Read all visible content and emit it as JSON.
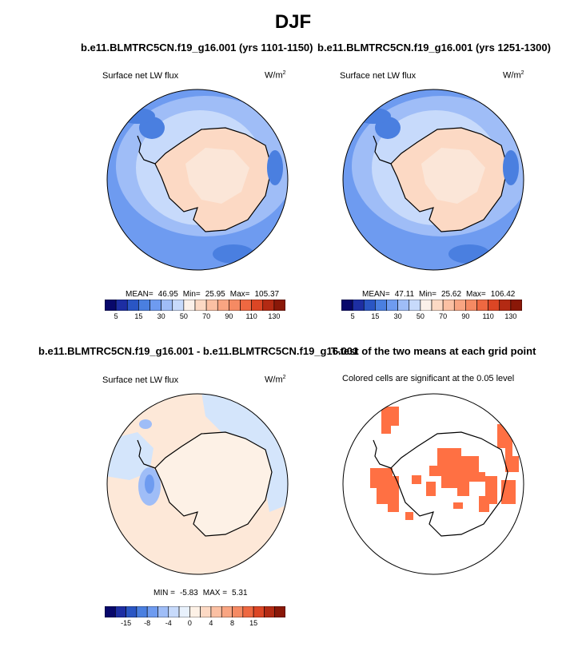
{
  "title": "DJF",
  "panels": [
    {
      "title": "b.e11.BLMTRC5CN.f19_g16.001 (yrs 1101-1150)",
      "variable": "Surface net LW flux",
      "units": "W/m",
      "units_exp": "2",
      "stats": {
        "mean_label": "MEAN=",
        "mean": "46.95",
        "min_label": "Min=",
        "min": "25.95",
        "max_label": "Max=",
        "max": "105.37"
      },
      "colorbar": {
        "colors": [
          "#08086b",
          "#1d2ea3",
          "#2a56c4",
          "#4a7fe0",
          "#6e9bf0",
          "#9fbdf7",
          "#c7dafb",
          "#fbf1ea",
          "#fcd9c4",
          "#fbc0a3",
          "#f9a582",
          "#f58a63",
          "#ee6841",
          "#dc4625",
          "#b32a13",
          "#8a1808"
        ],
        "tick_labels": [
          "5",
          "15",
          "30",
          "50",
          "70",
          "90",
          "110",
          "130"
        ]
      }
    },
    {
      "title": "b.e11.BLMTRC5CN.f19_g16.001 (yrs 1251-1300)",
      "variable": "Surface net LW flux",
      "units": "W/m",
      "units_exp": "2",
      "stats": {
        "mean_label": "MEAN=",
        "mean": "47.11",
        "min_label": "Min=",
        "min": "25.62",
        "max_label": "Max=",
        "max": "106.42"
      },
      "colorbar": {
        "colors": [
          "#08086b",
          "#1d2ea3",
          "#2a56c4",
          "#4a7fe0",
          "#6e9bf0",
          "#9fbdf7",
          "#c7dafb",
          "#fbf1ea",
          "#fcd9c4",
          "#fbc0a3",
          "#f9a582",
          "#f58a63",
          "#ee6841",
          "#dc4625",
          "#b32a13",
          "#8a1808"
        ],
        "tick_labels": [
          "5",
          "15",
          "30",
          "50",
          "70",
          "90",
          "110",
          "130"
        ]
      }
    },
    {
      "title": "b.e11.BLMTRC5CN.f19_g16.001 - b.e11.BLMTRC5CN.f19_g16.001",
      "variable": "Surface net LW flux",
      "units": "W/m",
      "units_exp": "2",
      "stats": {
        "min_label": "MIN =",
        "min": "-5.83",
        "max_label": "MAX =",
        "max": "5.31"
      },
      "colorbar": {
        "colors": [
          "#08086b",
          "#1d2ea3",
          "#2a56c4",
          "#4a7fe0",
          "#6e9bf0",
          "#9fbdf7",
          "#c7dafb",
          "#e8f1fc",
          "#fdf1e6",
          "#fcd9c4",
          "#fbc0a3",
          "#f9a582",
          "#f58a63",
          "#ee6841",
          "#dc4625",
          "#b32a13",
          "#8a1808"
        ],
        "tick_labels": [
          "-15",
          "-8",
          "-4",
          "0",
          "4",
          "8",
          "15"
        ]
      }
    },
    {
      "title": "T-test of the two means at each grid point",
      "subtitle": "Colored cells are significant at the 0.05 level",
      "fill_color": "#ff7043"
    }
  ],
  "colors": {
    "ocean_light": "#9fbdf7",
    "ocean_mid": "#6e9bf0",
    "ocean_dark": "#4a7fe0",
    "land_warm": "#fbd7c0",
    "land_pale": "#fcefe6",
    "diff_blue": "#d4e5fb",
    "diff_peach": "#fde8d8"
  }
}
